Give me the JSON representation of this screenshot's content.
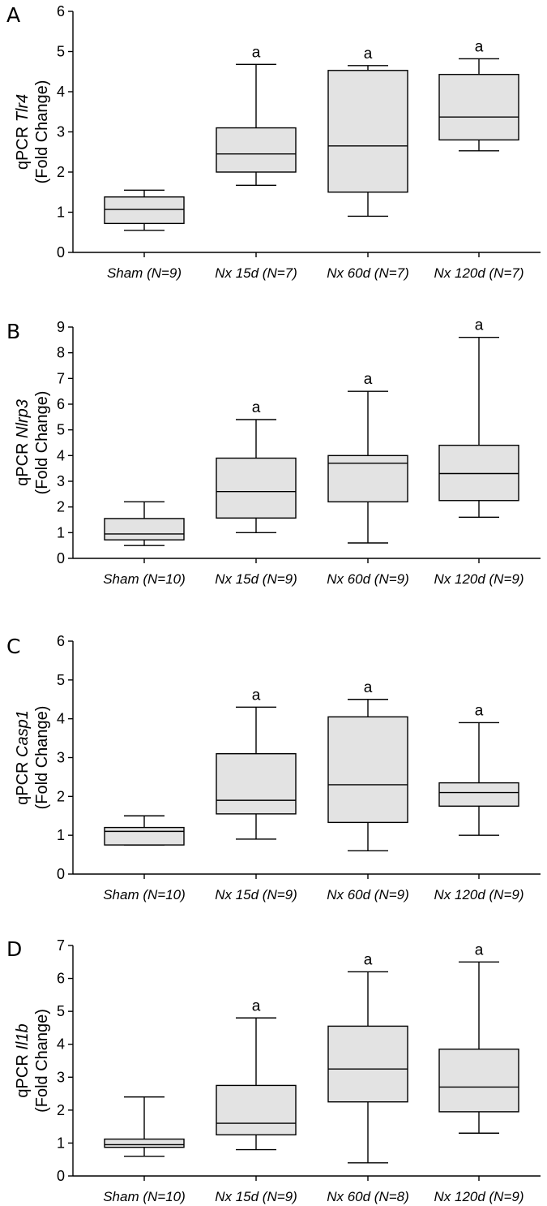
{
  "chart_data": [
    {
      "type": "boxplot",
      "panel": "A",
      "ylabel_prefix": "qPCR ",
      "ylabel_gene": "Tlr4",
      "ylabel_line2": "(Fold Change)",
      "ylim": [
        0,
        6
      ],
      "yticks": [
        "0",
        "1",
        "2",
        "3",
        "4",
        "5",
        "6"
      ],
      "categories": [
        "Sham  (N=9)",
        "Nx 15d  (N=7)",
        "Nx 60d  (N=7)",
        "Nx 120d  (N=7)"
      ],
      "boxes": [
        {
          "min": 0.55,
          "q1": 0.72,
          "median": 1.07,
          "q3": 1.38,
          "max": 1.55,
          "sig": ""
        },
        {
          "min": 1.67,
          "q1": 2.0,
          "median": 2.45,
          "q3": 3.1,
          "max": 4.68,
          "sig": "a"
        },
        {
          "min": 0.9,
          "q1": 1.5,
          "median": 2.65,
          "q3": 4.53,
          "max": 4.65,
          "sig": "a"
        },
        {
          "min": 2.53,
          "q1": 2.8,
          "median": 3.37,
          "q3": 4.43,
          "max": 4.82,
          "sig": "a"
        }
      ]
    },
    {
      "type": "boxplot",
      "panel": "B",
      "ylabel_prefix": "qPCR ",
      "ylabel_gene": "Nlrp3",
      "ylabel_line2": "(Fold Change)",
      "ylim": [
        0,
        9
      ],
      "yticks": [
        "0",
        "1",
        "2",
        "3",
        "4",
        "5",
        "6",
        "7",
        "8",
        "9"
      ],
      "categories": [
        "Sham  (N=10)",
        "Nx 15d  (N=9)",
        "Nx 60d  (N=9)",
        "Nx 120d  (N=9)"
      ],
      "boxes": [
        {
          "min": 0.5,
          "q1": 0.72,
          "median": 0.95,
          "q3": 1.55,
          "max": 2.2,
          "sig": ""
        },
        {
          "min": 1.0,
          "q1": 1.57,
          "median": 2.6,
          "q3": 3.9,
          "max": 5.4,
          "sig": "a"
        },
        {
          "min": 0.6,
          "q1": 2.2,
          "median": 3.7,
          "q3": 4.0,
          "max": 6.5,
          "sig": "a"
        },
        {
          "min": 1.6,
          "q1": 2.25,
          "median": 3.3,
          "q3": 4.4,
          "max": 8.6,
          "sig": "a"
        }
      ]
    },
    {
      "type": "boxplot",
      "panel": "C",
      "ylabel_prefix": "qPCR ",
      "ylabel_gene": "Casp1",
      "ylabel_line2": "(Fold Change)",
      "ylim": [
        0,
        6
      ],
      "yticks": [
        "0",
        "1",
        "2",
        "3",
        "4",
        "5",
        "6"
      ],
      "categories": [
        "Sham  (N=10)",
        "Nx 15d  (N=9)",
        "Nx 60d  (N=9)",
        "Nx 120d  (N=9)"
      ],
      "boxes": [
        {
          "min": 0.75,
          "q1": 0.75,
          "median": 1.1,
          "q3": 1.2,
          "max": 1.5,
          "sig": ""
        },
        {
          "min": 0.9,
          "q1": 1.55,
          "median": 1.9,
          "q3": 3.1,
          "max": 4.3,
          "sig": "a"
        },
        {
          "min": 0.6,
          "q1": 1.33,
          "median": 2.3,
          "q3": 4.05,
          "max": 4.5,
          "sig": "a"
        },
        {
          "min": 1.0,
          "q1": 1.75,
          "median": 2.1,
          "q3": 2.35,
          "max": 3.9,
          "sig": "a"
        }
      ]
    },
    {
      "type": "boxplot",
      "panel": "D",
      "ylabel_prefix": "qPCR ",
      "ylabel_gene": "Il1b",
      "ylabel_line2": "(Fold Change)",
      "ylim": [
        0,
        7
      ],
      "yticks": [
        "0",
        "1",
        "2",
        "3",
        "4",
        "5",
        "6",
        "7"
      ],
      "categories": [
        "Sham  (N=10)",
        "Nx 15d  (N=9)",
        "Nx 60d  (N=8)",
        "Nx 120d  (N=9)"
      ],
      "boxes": [
        {
          "min": 0.6,
          "q1": 0.87,
          "median": 0.95,
          "q3": 1.12,
          "max": 2.4,
          "sig": ""
        },
        {
          "min": 0.8,
          "q1": 1.25,
          "median": 1.6,
          "q3": 2.75,
          "max": 4.8,
          "sig": "a"
        },
        {
          "min": 0.4,
          "q1": 2.25,
          "median": 3.25,
          "q3": 4.55,
          "max": 6.2,
          "sig": "a"
        },
        {
          "min": 1.3,
          "q1": 1.95,
          "median": 2.7,
          "q3": 3.85,
          "max": 6.5,
          "sig": "a"
        }
      ]
    }
  ]
}
